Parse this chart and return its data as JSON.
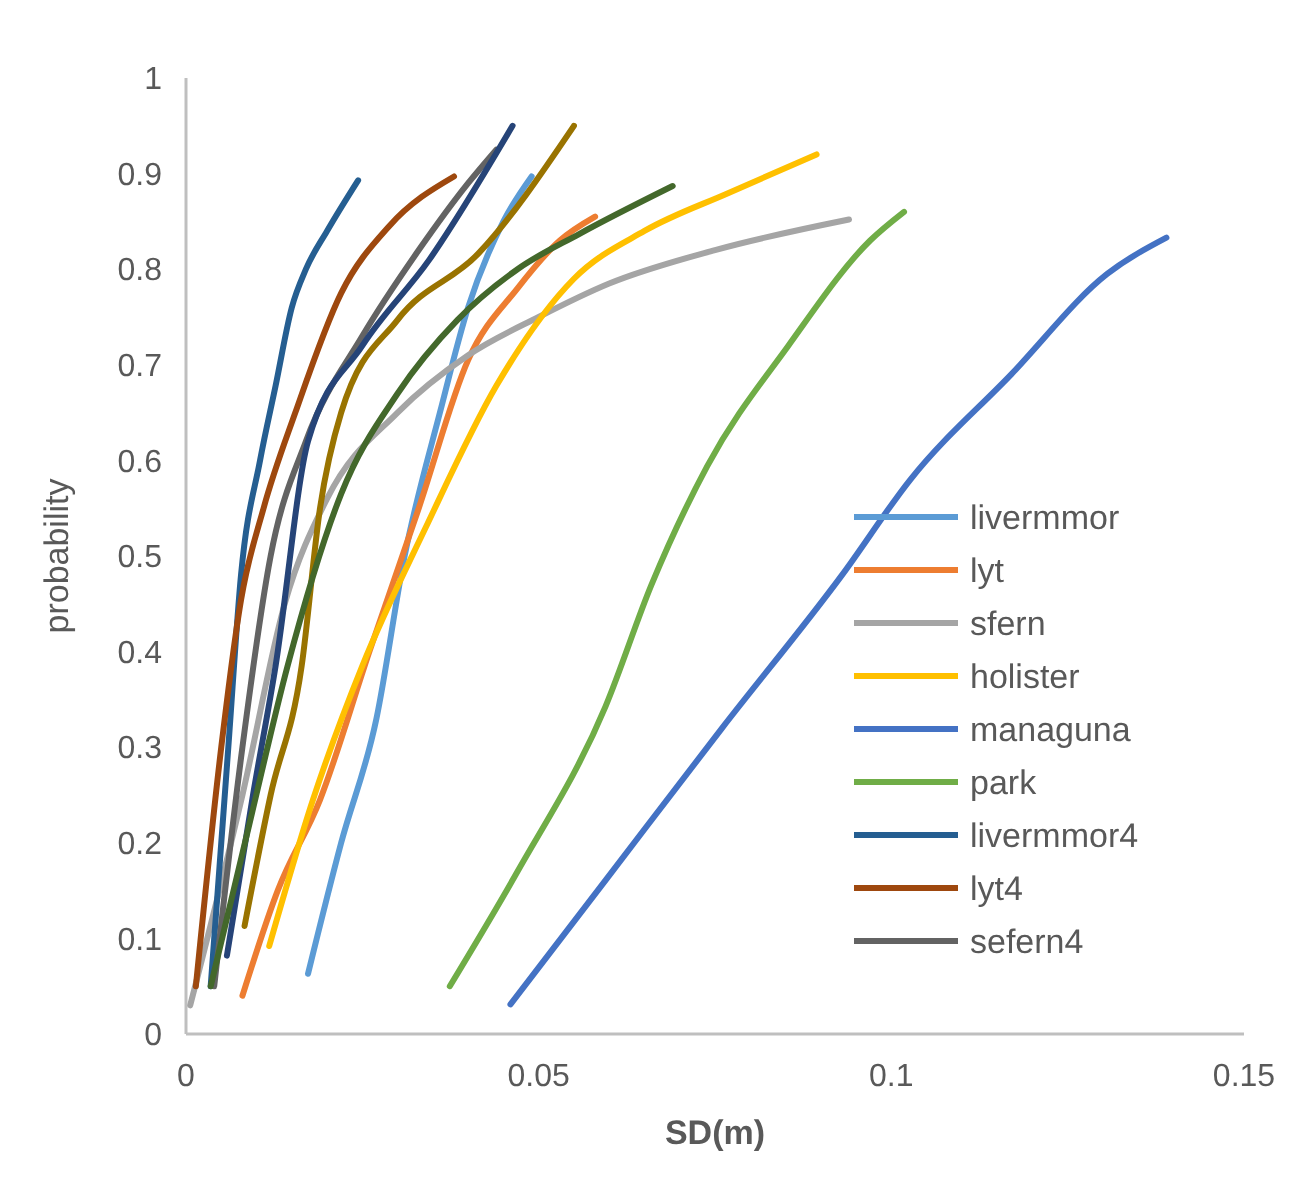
{
  "chart_data": {
    "type": "line",
    "xlabel": "SD(m)",
    "ylabel": "probability",
    "xlim": [
      0,
      0.15
    ],
    "xticks": [
      0,
      0.05,
      0.1,
      0.15
    ],
    "ylim": [
      0,
      1
    ],
    "yticks": [
      0,
      0.1,
      0.2,
      0.3,
      0.4,
      0.5,
      0.6,
      0.7,
      0.8,
      0.9,
      1
    ],
    "grid": false,
    "legend": "bottom right",
    "marker": "none",
    "line_style": "solid",
    "series": [
      {
        "name": "livermmor",
        "color": "#5b9bd5",
        "x": [
          0.0173,
          0.022,
          0.027,
          0.031,
          0.036,
          0.04,
          0.045,
          0.049
        ],
        "values": [
          0.063,
          0.2,
          0.33,
          0.5,
          0.65,
          0.76,
          0.85,
          0.897
        ]
      },
      {
        "name": "lyt",
        "color": "#ed7d31",
        "x": [
          0.008,
          0.013,
          0.019,
          0.026,
          0.033,
          0.04,
          0.047,
          0.053,
          0.058
        ],
        "values": [
          0.04,
          0.15,
          0.245,
          0.4,
          0.55,
          0.705,
          0.78,
          0.83,
          0.855
        ]
      },
      {
        "name": "sfern",
        "color": "#a5a5a5",
        "x": [
          0.0006,
          0.008,
          0.014,
          0.02,
          0.03,
          0.04,
          0.05,
          0.06,
          0.075,
          0.094
        ],
        "values": [
          0.03,
          0.25,
          0.45,
          0.56,
          0.65,
          0.71,
          0.75,
          0.785,
          0.82,
          0.852
        ]
      },
      {
        "name": "holister",
        "color": "#ffc000",
        "x": [
          0.0118,
          0.018,
          0.025,
          0.034,
          0.044,
          0.055,
          0.065,
          0.077,
          0.0894
        ],
        "values": [
          0.092,
          0.245,
          0.385,
          0.53,
          0.678,
          0.79,
          0.84,
          0.88,
          0.92
        ]
      },
      {
        "name": "managuna",
        "color": "#4472c4",
        "x": [
          0.046,
          0.0595,
          0.076,
          0.093,
          0.1027,
          0.117,
          0.1306,
          0.139
        ],
        "values": [
          0.031,
          0.161,
          0.32,
          0.48,
          0.58,
          0.69,
          0.795,
          0.833
        ]
      },
      {
        "name": "park",
        "color": "#70ad47",
        "x": [
          0.0374,
          0.047,
          0.0595,
          0.066,
          0.0739,
          0.0854,
          0.097,
          0.1018
        ],
        "values": [
          0.05,
          0.17,
          0.343,
          0.47,
          0.594,
          0.72,
          0.83,
          0.86
        ]
      },
      {
        "name": "livermmor4",
        "color": "#255e91",
        "x": [
          0.0035,
          0.006,
          0.0078,
          0.0105,
          0.0127,
          0.015,
          0.017,
          0.02,
          0.0244
        ],
        "values": [
          0.05,
          0.3,
          0.48,
          0.6,
          0.678,
          0.76,
          0.8,
          0.84,
          0.893
        ]
      },
      {
        "name": "lyt4",
        "color": "#9e480e",
        "x": [
          0.0014,
          0.005,
          0.0078,
          0.011,
          0.0155,
          0.022,
          0.0288,
          0.038
        ],
        "values": [
          0.05,
          0.3,
          0.454,
          0.55,
          0.65,
          0.775,
          0.845,
          0.897
        ]
      },
      {
        "name": "sefern4",
        "color": "#636363",
        "x": [
          0.004,
          0.008,
          0.012,
          0.017,
          0.025,
          0.033,
          0.04,
          0.044
        ],
        "values": [
          0.05,
          0.3,
          0.5,
          0.62,
          0.73,
          0.82,
          0.89,
          0.925
        ]
      },
      {
        "color": "#997300",
        "x": [
          0.0083,
          0.012,
          0.0164,
          0.019,
          0.022,
          0.03,
          0.0414,
          0.055
        ],
        "values": [
          0.113,
          0.25,
          0.385,
          0.55,
          0.65,
          0.747,
          0.816,
          0.95
        ]
      },
      {
        "color": "#264478",
        "x": [
          0.0058,
          0.0095,
          0.0127,
          0.0173,
          0.025,
          0.0345,
          0.0463
        ],
        "values": [
          0.082,
          0.25,
          0.385,
          0.62,
          0.72,
          0.81,
          0.95
        ]
      },
      {
        "color": "#43682b",
        "x": [
          0.0035,
          0.009,
          0.0144,
          0.022,
          0.03,
          0.0385,
          0.047,
          0.0558,
          0.069
        ],
        "values": [
          0.05,
          0.22,
          0.385,
          0.565,
          0.67,
          0.747,
          0.8,
          0.837,
          0.887
        ]
      }
    ]
  }
}
